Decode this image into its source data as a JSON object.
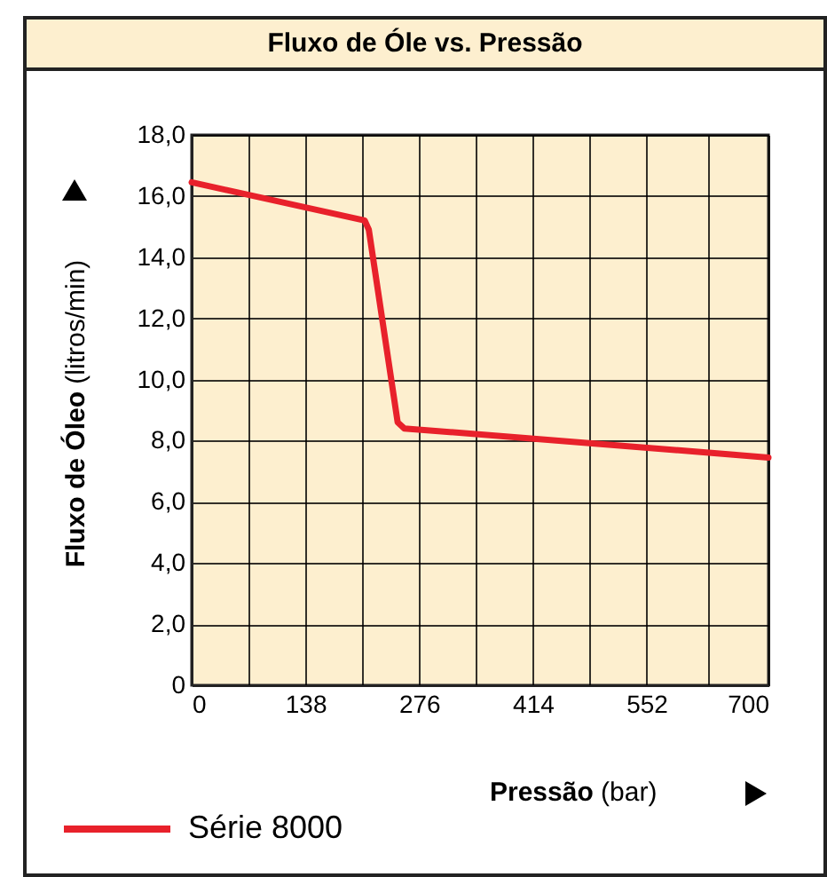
{
  "chart_data": {
    "type": "line",
    "title": "Fluxo de Óle vs. Pressão",
    "xlabel": "Pressão (bar)",
    "ylabel": "Fluxo de Óleo (litros/min)",
    "x": [
      0,
      210,
      215,
      250,
      258,
      700
    ],
    "series": [
      {
        "name": "Série 8000",
        "color": "#e8212b",
        "values": [
          16.45,
          15.2,
          14.9,
          8.6,
          8.4,
          7.45
        ]
      }
    ],
    "xlim": [
      0,
      700
    ],
    "xticks": [
      0,
      {
        "value": 69,
        "label": null
      },
      138,
      {
        "value": 207,
        "label": null
      },
      276,
      {
        "value": 345,
        "label": null
      },
      414,
      {
        "value": 483,
        "label": null
      },
      552,
      {
        "value": 626,
        "label": null
      },
      700
    ],
    "ylim": [
      0,
      18
    ],
    "yticks": [
      {
        "value": 0,
        "label": "0"
      },
      {
        "value": 2,
        "label": "2,0"
      },
      {
        "value": 4,
        "label": "4,0"
      },
      {
        "value": 6,
        "label": "6,0"
      },
      {
        "value": 8,
        "label": "8,0"
      },
      {
        "value": 10,
        "label": "10,0"
      },
      {
        "value": 12,
        "label": "12,0"
      },
      {
        "value": 14,
        "label": "14,0"
      },
      {
        "value": 16,
        "label": "16,0"
      },
      {
        "value": 18,
        "label": "18,0"
      }
    ],
    "grid": true,
    "legend": "bottom",
    "line_style": "solid",
    "marker": "none"
  }
}
